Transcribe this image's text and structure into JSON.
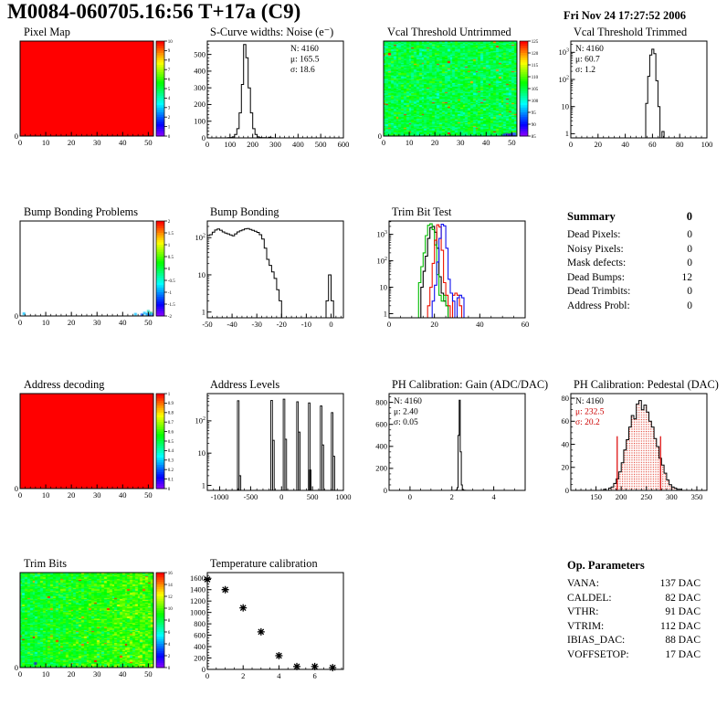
{
  "header": {
    "title": "M0084-060705.16:56 T+17a (C9)",
    "date": "Fri Nov 24 17:27:52 2006"
  },
  "summary": {
    "title": "Summary",
    "value": "0",
    "rows": [
      {
        "label": "Dead Pixels:",
        "value": "0"
      },
      {
        "label": "Noisy Pixels:",
        "value": "0"
      },
      {
        "label": "Mask defects:",
        "value": "0"
      },
      {
        "label": "Dead Bumps:",
        "value": "12"
      },
      {
        "label": "Dead Trimbits:",
        "value": "0"
      },
      {
        "label": "Address Probl:",
        "value": "0"
      }
    ]
  },
  "op_parameters": {
    "title": "Op. Parameters",
    "rows": [
      {
        "label": "VANA:",
        "value": "137 DAC"
      },
      {
        "label": "CALDEL:",
        "value": "82 DAC"
      },
      {
        "label": "VTHR:",
        "value": "91 DAC"
      },
      {
        "label": "VTRIM:",
        "value": "112 DAC"
      },
      {
        "label": "IBIAS_DAC:",
        "value": "88 DAC"
      },
      {
        "label": "VOFFSETOP:",
        "value": "17 DAC"
      }
    ]
  },
  "chart_data": [
    {
      "title": "Pixel Map",
      "type": "heatmap",
      "render": "heatmap",
      "map": "solid",
      "xlim": [
        0,
        52
      ],
      "ylim": [
        0,
        80
      ],
      "xticks": [
        0,
        10,
        20,
        30,
        40,
        50
      ],
      "xminor": 2,
      "yticks": [
        0,
        10,
        20,
        30,
        40,
        50,
        60,
        70,
        80
      ],
      "yminor": 2,
      "colorbar": {
        "labels": [
          "10",
          "9",
          "8",
          "7",
          "6",
          "5",
          "4",
          "3",
          "2",
          "1",
          "0"
        ]
      }
    },
    {
      "title": "S-Curve widths: Noise (e⁻)",
      "type": "bar",
      "render": "hist",
      "yscale": "lin",
      "xlim": [
        0,
        600
      ],
      "xticks": [
        0,
        100,
        200,
        300,
        400,
        500,
        600
      ],
      "xminor": 20,
      "ymax": 580,
      "yticks": [
        0,
        100,
        200,
        300,
        400,
        500
      ],
      "yminor": 20,
      "bins": {
        "x0": 90,
        "w": 10,
        "counts": [
          1,
          2,
          6,
          20,
          55,
          150,
          320,
          560,
          480,
          300,
          150,
          55,
          20,
          6,
          2,
          1,
          1,
          0,
          4,
          1
        ]
      },
      "stats": {
        "pos": "tr",
        "lines": [
          "N: 4160",
          "μ: 165.5",
          "σ: 18.6"
        ],
        "colors": [
          "#000000",
          "#000000",
          "#000000"
        ]
      }
    },
    {
      "title": "Vcal Threshold Untrimmed",
      "type": "heatmap",
      "render": "heatmap",
      "map": "noise",
      "seed": 11,
      "mean": 0.5,
      "sd": 0.06,
      "speck": 0.012,
      "cells": [
        [
          47,
          0.5,
          "#2233dd"
        ],
        [
          48,
          1,
          "#3344ee"
        ],
        [
          49,
          0.5,
          "#5500cc"
        ],
        [
          50,
          1,
          "#2233dd"
        ],
        [
          51,
          0.5,
          "#4400bb"
        ],
        [
          51,
          1.5,
          "#3366ff"
        ]
      ],
      "xlim": [
        0,
        52
      ],
      "ylim": [
        0,
        80
      ],
      "xticks": [
        0,
        10,
        20,
        30,
        40,
        50
      ],
      "xminor": 2,
      "yticks": [
        0,
        10,
        20,
        30,
        40,
        50,
        60,
        70,
        80
      ],
      "yminor": 2,
      "colorbar": {
        "labels": [
          "125",
          "120",
          "115",
          "110",
          "105",
          "100",
          "95",
          "90",
          "85"
        ]
      }
    },
    {
      "title": "Vcal Threshold Trimmed",
      "type": "bar",
      "render": "hist",
      "yscale": "log",
      "xlim": [
        0,
        100
      ],
      "xticks": [
        0,
        20,
        40,
        60,
        80,
        100
      ],
      "xminor": 4,
      "ymax": 2600,
      "ylog_labels": [
        "1",
        "10",
        "10^2",
        "10^3"
      ],
      "bins": {
        "x0": 55,
        "w": 1.5,
        "counts": [
          13,
          130,
          800,
          1300,
          900,
          90,
          10,
          0,
          1.2
        ]
      },
      "stats": {
        "pos": "tl",
        "lines": [
          "N: 4160",
          "μ: 60.7",
          "σ:  1.2"
        ],
        "colors": [
          "#000000",
          "#000000",
          "#000000"
        ]
      }
    },
    {
      "title": "Bump Bonding Problems",
      "type": "heatmap",
      "render": "heatmap",
      "map": "blank",
      "cells": [
        [
          1.5,
          1.5,
          "#33ccff"
        ],
        [
          45,
          1,
          "#33ccff"
        ],
        [
          47.5,
          0.5,
          "#2266ff"
        ],
        [
          48.5,
          2,
          "#33ccff"
        ],
        [
          49.5,
          1,
          "#11aaff"
        ],
        [
          50,
          3.5,
          "#44ddcc"
        ],
        [
          50.5,
          0.5,
          "#2255ff"
        ],
        [
          51,
          2,
          "#22cc88"
        ],
        [
          51.5,
          1,
          "#33ccff"
        ],
        [
          52,
          0.5,
          "#3366ff"
        ]
      ],
      "xlim": [
        0,
        52
      ],
      "ylim": [
        0,
        80
      ],
      "xticks": [
        0,
        10,
        20,
        30,
        40,
        50
      ],
      "xminor": 2,
      "yticks": [
        0,
        10,
        20,
        30,
        40,
        50,
        60,
        70,
        80
      ],
      "yminor": 2,
      "colorbar": {
        "labels": [
          "2",
          "1.5",
          "1",
          "0.5",
          "0",
          "-0.5",
          "-1",
          "-1.5",
          "-2"
        ]
      }
    },
    {
      "title": "Bump Bonding",
      "type": "bar",
      "render": "hist",
      "yscale": "log",
      "xlim": [
        -50,
        5
      ],
      "xticks": [
        -50,
        -40,
        -30,
        -20,
        -10,
        0
      ],
      "xminor": 2,
      "ymax": 280,
      "ylog_labels": [
        "1",
        "10",
        "10^2"
      ],
      "bins": {
        "x0": -50,
        "w": 1,
        "counts": [
          115,
          120,
          140,
          160,
          170,
          158,
          142,
          132,
          126,
          118,
          112,
          126,
          142,
          152,
          162,
          172,
          176,
          166,
          156,
          148,
          138,
          120,
          92,
          52,
          26,
          18,
          12,
          8,
          4,
          2,
          0,
          0,
          0,
          0,
          0,
          0,
          0,
          0,
          0,
          0,
          0,
          0,
          0,
          0,
          0,
          0,
          0,
          0,
          2,
          10,
          2,
          0
        ]
      }
    },
    {
      "title": "Trim Bit Test",
      "type": "bar",
      "render": "multihist",
      "yscale": "log",
      "xlim": [
        0,
        60
      ],
      "xticks": [
        0,
        20,
        40,
        60
      ],
      "xminor": 5,
      "ymax": 3200,
      "ylog_labels": [
        "1",
        "10",
        "10^2",
        "10^3"
      ],
      "series": [
        {
          "name": "black",
          "color": "#000000",
          "bins": {
            "x0": 14,
            "w": 1,
            "counts": [
              10,
              40,
              150,
              700,
              1800,
              2000,
              1200,
              300,
              25,
              6,
              3,
              2
            ]
          }
        },
        {
          "name": "green",
          "color": "#00bb00",
          "full": true,
          "bins": {
            "x0": 13,
            "w": 1,
            "counts": [
              15,
              60,
              200,
              900,
              2200,
              2500,
              1500,
              400,
              30,
              5,
              3,
              5,
              2
            ]
          }
        },
        {
          "name": "red",
          "color": "#ee1100",
          "bins": {
            "x0": 17,
            "w": 1,
            "counts": [
              2,
              10,
              80,
              600,
              2300,
              1900,
              250,
              15,
              5,
              2,
              0,
              5,
              6,
              5,
              2
            ]
          }
        },
        {
          "name": "blue",
          "color": "#1111ee",
          "bins": {
            "x0": 19,
            "w": 1,
            "counts": [
              3,
              12,
              90,
              700,
              2400,
              2100,
              300,
              20,
              6,
              3,
              0,
              4,
              5,
              4
            ]
          }
        }
      ]
    },
    {
      "title": "Address decoding",
      "type": "heatmap",
      "render": "heatmap",
      "map": "solid",
      "xlim": [
        0,
        52
      ],
      "ylim": [
        0,
        80
      ],
      "xticks": [
        0,
        10,
        20,
        30,
        40,
        50
      ],
      "xminor": 2,
      "yticks": [
        0,
        10,
        20,
        30,
        40,
        50,
        60,
        70,
        80
      ],
      "yminor": 2,
      "colorbar": {
        "labels": [
          "1",
          "0.9",
          "0.8",
          "0.7",
          "0.6",
          "0.5",
          "0.4",
          "0.3",
          "0.2",
          "0.1",
          "0"
        ]
      }
    },
    {
      "title": "Address Levels",
      "type": "bar",
      "render": "spikes",
      "yscale": "log",
      "xlim": [
        -1200,
        1000
      ],
      "xticks": [
        -1000,
        -500,
        0,
        500,
        1000
      ],
      "xminor": 100,
      "ymax": 700,
      "ylog_labels": [
        "1",
        "10",
        "10^2"
      ],
      "spike_halfwidth": 13,
      "spikes": [
        [
          -700,
          420
        ],
        [
          -672,
          2
        ],
        [
          -160,
          430
        ],
        [
          -132,
          25
        ],
        [
          40,
          470
        ],
        [
          68,
          27
        ],
        [
          258,
          390
        ],
        [
          286,
          45
        ],
        [
          448,
          360
        ],
        [
          463,
          3
        ],
        [
          640,
          290
        ],
        [
          668,
          18
        ],
        [
          818,
          180
        ],
        [
          846,
          8
        ]
      ]
    },
    {
      "title": "PH Calibration: Gain (ADC/DAC)",
      "type": "bar",
      "render": "hist",
      "yscale": "lin",
      "xlim": [
        -1,
        5.5
      ],
      "xticks": [
        0,
        2,
        4
      ],
      "xminor": 0.5,
      "ymax": 880,
      "yticks": [
        0,
        200,
        400,
        600,
        800
      ],
      "yminor": 50,
      "bins": {
        "x0": 2.15,
        "w": 0.05,
        "counts": [
          1,
          3,
          25,
          500,
          820,
          350,
          50,
          8,
          2,
          1
        ]
      },
      "stats": {
        "pos": "tl",
        "lines": [
          "N: 4160",
          "μ: 2.40",
          "σ: 0.05"
        ],
        "colors": [
          "#000000",
          "#000000",
          "#000000"
        ]
      }
    },
    {
      "title": "PH Calibration: Pedestal (DAC)",
      "type": "bar",
      "render": "hist",
      "yscale": "lin",
      "fill": "reddots",
      "xlim": [
        100,
        370
      ],
      "xticks": [
        150,
        200,
        250,
        300,
        350
      ],
      "xminor": 10,
      "ymax": 84,
      "yticks": [
        0,
        20,
        40,
        60,
        80
      ],
      "yminor": 5,
      "bins": {
        "x0": 165,
        "w": 5,
        "counts": [
          1,
          0,
          2,
          3,
          6,
          10,
          16,
          24,
          35,
          44,
          55,
          65,
          62,
          75,
          78,
          70,
          74,
          68,
          60,
          55,
          45,
          38,
          28,
          22,
          15,
          9,
          5,
          3,
          2,
          1,
          1
        ]
      },
      "vlines": {
        "x": [
          192,
          278
        ],
        "h": 47,
        "color": "#dd0000"
      },
      "stats": {
        "pos": "tl",
        "lines": [
          "N: 4160",
          "μ: 232.5",
          "σ: 20.2"
        ],
        "colors": [
          "#000000",
          "#cc0000",
          "#cc0000"
        ]
      }
    },
    {
      "title": "Trim Bits",
      "type": "heatmap",
      "render": "heatmap",
      "map": "noise",
      "seed": 5,
      "mean": 0.52,
      "sd": 0.06,
      "grad": 0.14,
      "speck": 0.01,
      "cells": [
        [
          6,
          3,
          "#2233cc"
        ]
      ],
      "xlim": [
        0,
        52
      ],
      "ylim": [
        0,
        80
      ],
      "xticks": [
        0,
        10,
        20,
        30,
        40,
        50
      ],
      "xminor": 2,
      "yticks": [
        0,
        10,
        20,
        30,
        40,
        50,
        60,
        70,
        80
      ],
      "yminor": 2,
      "colorbar": {
        "labels": [
          "16",
          "14",
          "12",
          "10",
          "8",
          "6",
          "4",
          "2",
          "0"
        ]
      }
    },
    {
      "title": "Temperature calibration",
      "type": "scatter",
      "render": "scatter",
      "yscale": "lin",
      "xlim": [
        0,
        7.6
      ],
      "xticks": [
        0,
        2,
        4,
        6
      ],
      "xminor": 0.5,
      "ymax": 1700,
      "yticks": [
        0,
        200,
        400,
        600,
        800,
        1000,
        1200,
        1400,
        1600
      ],
      "yminor": 50,
      "points": [
        [
          0,
          1580
        ],
        [
          1,
          1400
        ],
        [
          2,
          1080
        ],
        [
          3,
          660
        ],
        [
          4,
          240
        ],
        [
          5,
          50
        ],
        [
          6,
          50
        ],
        [
          7,
          30
        ]
      ]
    }
  ]
}
